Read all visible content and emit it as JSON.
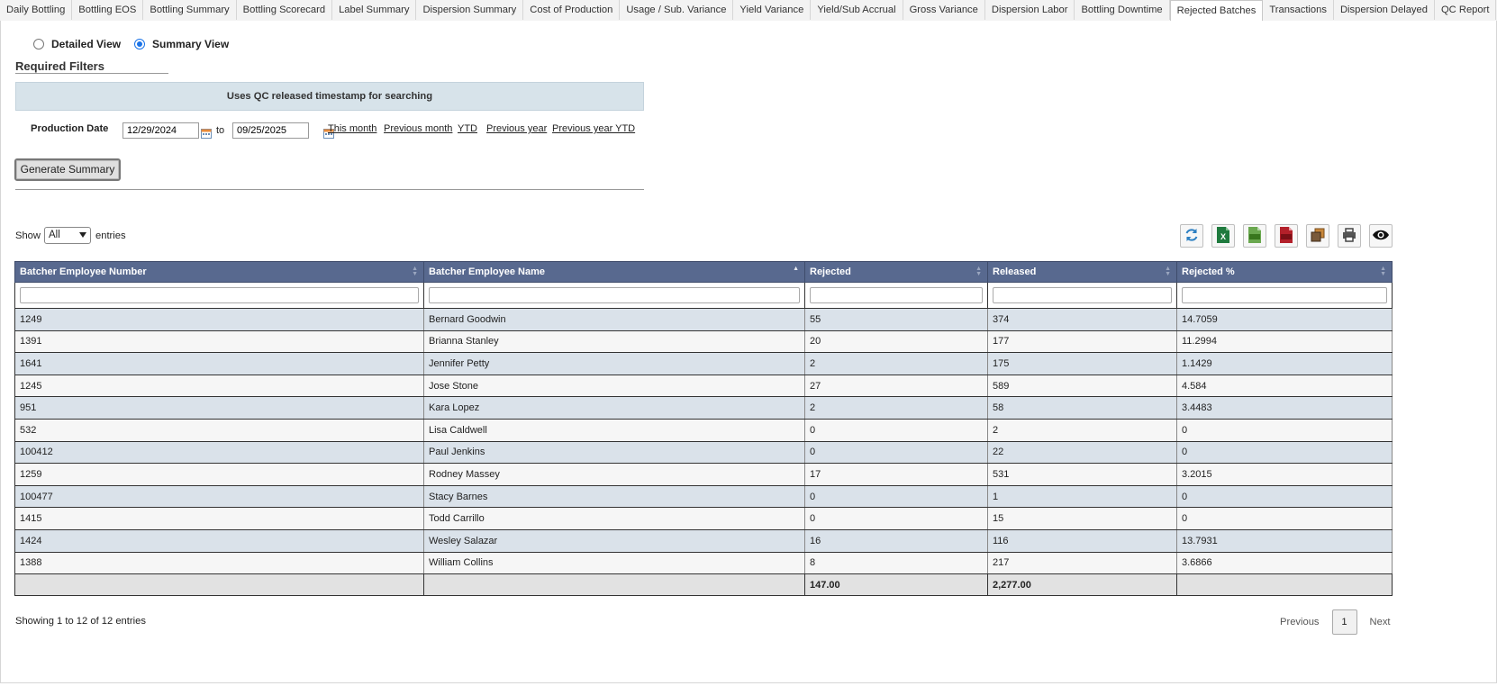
{
  "tabs": [
    {
      "label": "Daily Bottling",
      "active": false
    },
    {
      "label": "Bottling EOS",
      "active": false
    },
    {
      "label": "Bottling Summary",
      "active": false
    },
    {
      "label": "Bottling Scorecard",
      "active": false
    },
    {
      "label": "Label Summary",
      "active": false
    },
    {
      "label": "Dispersion Summary",
      "active": false
    },
    {
      "label": "Cost of Production",
      "active": false
    },
    {
      "label": "Usage / Sub. Variance",
      "active": false
    },
    {
      "label": "Yield Variance",
      "active": false
    },
    {
      "label": "Yield/Sub Accrual",
      "active": false
    },
    {
      "label": "Gross Variance",
      "active": false
    },
    {
      "label": "Dispersion Labor",
      "active": false
    },
    {
      "label": "Bottling Downtime",
      "active": false
    },
    {
      "label": "Rejected Batches",
      "active": true
    },
    {
      "label": "Transactions",
      "active": false
    },
    {
      "label": "Dispersion Delayed",
      "active": false
    },
    {
      "label": "QC Report",
      "active": false
    }
  ],
  "view": {
    "detailed_label": "Detailed View",
    "summary_label": "Summary View",
    "selected": "summary"
  },
  "filters": {
    "title": "Required Filters",
    "info": "Uses QC released timestamp for searching",
    "date_label": "Production Date",
    "from": "12/29/2024",
    "to_label": "to",
    "to": "09/25/2025",
    "quick_links": [
      "This month",
      "Previous month",
      "YTD",
      "Previous year",
      "Previous year YTD"
    ],
    "generate_label": "Generate Summary"
  },
  "length": {
    "show_label": "Show",
    "selected": "All",
    "entries_label": "entries"
  },
  "toolbar": [
    "refresh-icon",
    "excel-icon",
    "csv-icon",
    "pdf-icon",
    "copy-icon",
    "print-icon",
    "column-visibility-icon"
  ],
  "table": {
    "columns": [
      "Batcher Employee Number",
      "Batcher Employee Name",
      "Rejected",
      "Released",
      "Rejected %"
    ],
    "sorted_column": 1,
    "rows": [
      [
        "1249",
        "Bernard Goodwin",
        "55",
        "374",
        "14.7059"
      ],
      [
        "1391",
        "Brianna Stanley",
        "20",
        "177",
        "11.2994"
      ],
      [
        "1641",
        "Jennifer Petty",
        "2",
        "175",
        "1.1429"
      ],
      [
        "1245",
        "Jose Stone",
        "27",
        "589",
        "4.584"
      ],
      [
        "951",
        "Kara Lopez",
        "2",
        "58",
        "3.4483"
      ],
      [
        "532",
        "Lisa Caldwell",
        "0",
        "2",
        "0"
      ],
      [
        "100412",
        "Paul Jenkins",
        "0",
        "22",
        "0"
      ],
      [
        "1259",
        "Rodney Massey",
        "17",
        "531",
        "3.2015"
      ],
      [
        "100477",
        "Stacy Barnes",
        "0",
        "1",
        "0"
      ],
      [
        "1415",
        "Todd Carrillo",
        "0",
        "15",
        "0"
      ],
      [
        "1424",
        "Wesley Salazar",
        "16",
        "116",
        "13.7931"
      ],
      [
        "1388",
        "William Collins",
        "8",
        "217",
        "3.6866"
      ]
    ],
    "footer": [
      "",
      "",
      "147.00",
      "2,277.00",
      ""
    ]
  },
  "info_text": "Showing 1 to 12 of 12 entries",
  "pagination": {
    "previous": "Previous",
    "current": "1",
    "next": "Next"
  },
  "colors": {
    "header_bg": "#58698f",
    "odd_row": "#dae2ea",
    "even_row": "#f6f6f6",
    "info_box": "#d7e3ea"
  }
}
